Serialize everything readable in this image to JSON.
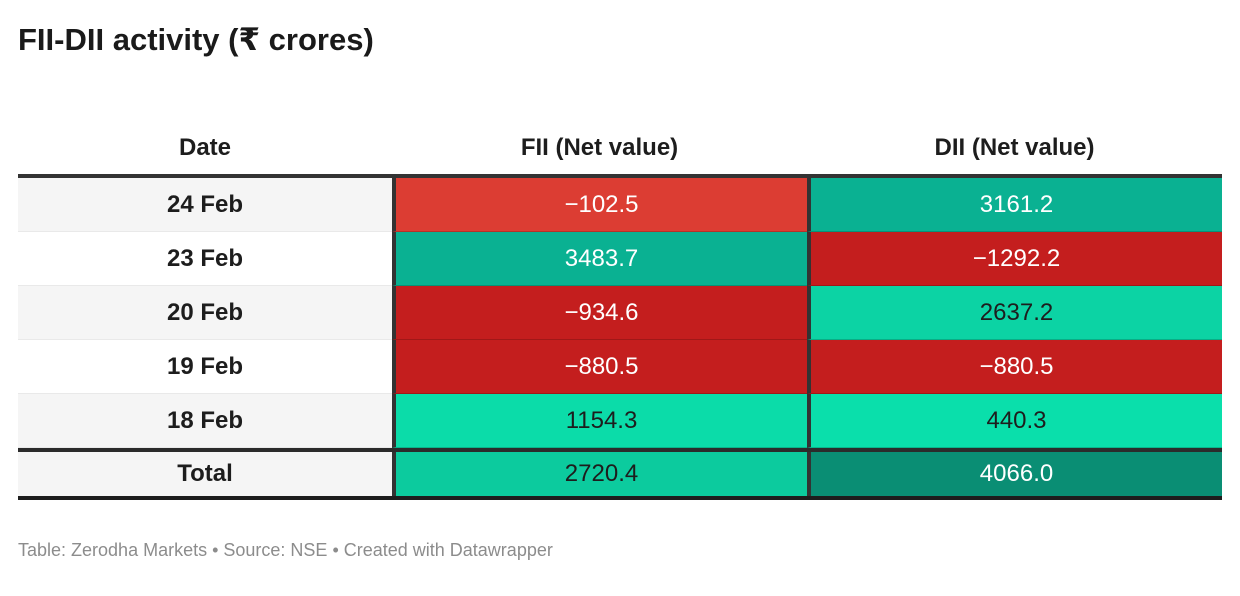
{
  "title": "FII-DII activity (₹ crores)",
  "header": {
    "date": "Date",
    "fii": "FII (Net value)",
    "dii": "DII (Net value)"
  },
  "rows": [
    {
      "date": "24 Feb",
      "fii": {
        "text": "−102.5",
        "bg": "#dc3d33",
        "fg": "#ffffff"
      },
      "dii": {
        "text": "3161.2",
        "bg": "#0ab192",
        "fg": "#ffffff"
      }
    },
    {
      "date": "23 Feb",
      "fii": {
        "text": "3483.7",
        "bg": "#0ab192",
        "fg": "#ffffff"
      },
      "dii": {
        "text": "−1292.2",
        "bg": "#c41e1e",
        "fg": "#ffffff"
      }
    },
    {
      "date": "20 Feb",
      "fii": {
        "text": "−934.6",
        "bg": "#c41e1e",
        "fg": "#ffffff"
      },
      "dii": {
        "text": "2637.2",
        "bg": "#0cd3a4",
        "fg": "#1d1d1d"
      }
    },
    {
      "date": "19 Feb",
      "fii": {
        "text": "−880.5",
        "bg": "#c41e1e",
        "fg": "#ffffff"
      },
      "dii": {
        "text": "−880.5",
        "bg": "#c41e1e",
        "fg": "#ffffff"
      }
    },
    {
      "date": "18 Feb",
      "fii": {
        "text": "1154.3",
        "bg": "#0bdca9",
        "fg": "#1d1d1d"
      },
      "dii": {
        "text": "440.3",
        "bg": "#0adfab",
        "fg": "#1d1d1d"
      }
    }
  ],
  "total": {
    "date": "Total",
    "fii": {
      "text": "2720.4",
      "bg": "#0ccb9e",
      "fg": "#1d1d1d"
    },
    "dii": {
      "text": "4066.0",
      "bg": "#0a8e74",
      "fg": "#ffffff"
    }
  },
  "footer": "Table: Zerodha Markets • Source: NSE • Created with Datawrapper",
  "chart_data": {
    "type": "table",
    "title": "FII-DII activity (₹ crores)",
    "columns": [
      "Date",
      "FII (Net value)",
      "DII (Net value)"
    ],
    "rows": [
      [
        "24 Feb",
        -102.5,
        3161.2
      ],
      [
        "23 Feb",
        3483.7,
        -1292.2
      ],
      [
        "20 Feb",
        -934.6,
        2637.2
      ],
      [
        "19 Feb",
        -880.5,
        -880.5
      ],
      [
        "18 Feb",
        1154.3,
        440.3
      ],
      [
        "Total",
        2720.4,
        4066.0
      ]
    ],
    "color_coding": "red cells = negative (net sell), green/teal cells = positive (net buy); shade intensity scales with magnitude"
  }
}
